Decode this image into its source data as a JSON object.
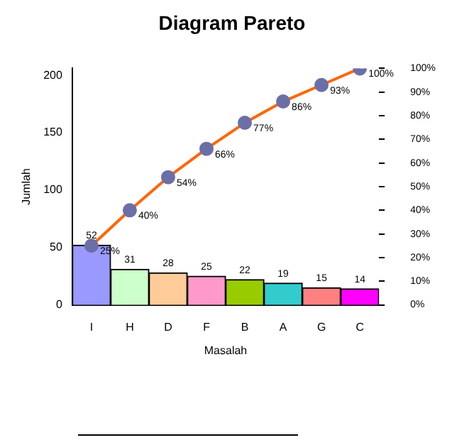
{
  "chart_data": {
    "type": "bar",
    "title": "Diagram Pareto",
    "xlabel": "Masalah",
    "ylabel": "Jumlah",
    "categories": [
      "I",
      "H",
      "D",
      "F",
      "B",
      "A",
      "G",
      "C"
    ],
    "series": [
      {
        "colors": [
          "#9999ff",
          "#ccffcc",
          "#ffcc99",
          "#ff99cc",
          "#99cc00",
          "#33cccc",
          "#ff8080",
          "#ff00ff"
        ],
        "values": [
          52,
          31,
          28,
          25,
          22,
          19,
          15,
          14
        ],
        "value_labels": [
          "52",
          "31",
          "28",
          "25",
          "22",
          "19",
          "15",
          "14"
        ]
      },
      {
        "type": "line",
        "axis": "y2",
        "color": "#ff6600",
        "marker": "circle",
        "values": [
          25,
          40,
          54,
          66,
          77,
          86,
          93,
          100
        ],
        "value_labels": [
          "25%",
          "40%",
          "54%",
          "66%",
          "77%",
          "86%",
          "93%",
          "100%"
        ]
      }
    ],
    "ylim": [
      0,
      206
    ],
    "yticks": [
      0,
      50,
      100,
      150,
      200
    ],
    "y2lim": [
      0,
      100
    ],
    "y2ticks": [
      {
        "value": 0,
        "label": "0%"
      },
      {
        "value": 10,
        "label": "10%"
      },
      {
        "value": 20,
        "label": "20%"
      },
      {
        "value": 30,
        "label": "30%"
      },
      {
        "value": 40,
        "label": "40%"
      },
      {
        "value": 50,
        "label": "50%"
      },
      {
        "value": 60,
        "label": "60%"
      },
      {
        "value": 70,
        "label": "70%"
      },
      {
        "value": 80,
        "label": "80%"
      },
      {
        "value": 90,
        "label": "90%"
      },
      {
        "value": 100,
        "label": "100%"
      }
    ],
    "grid": false,
    "legend": false
  }
}
